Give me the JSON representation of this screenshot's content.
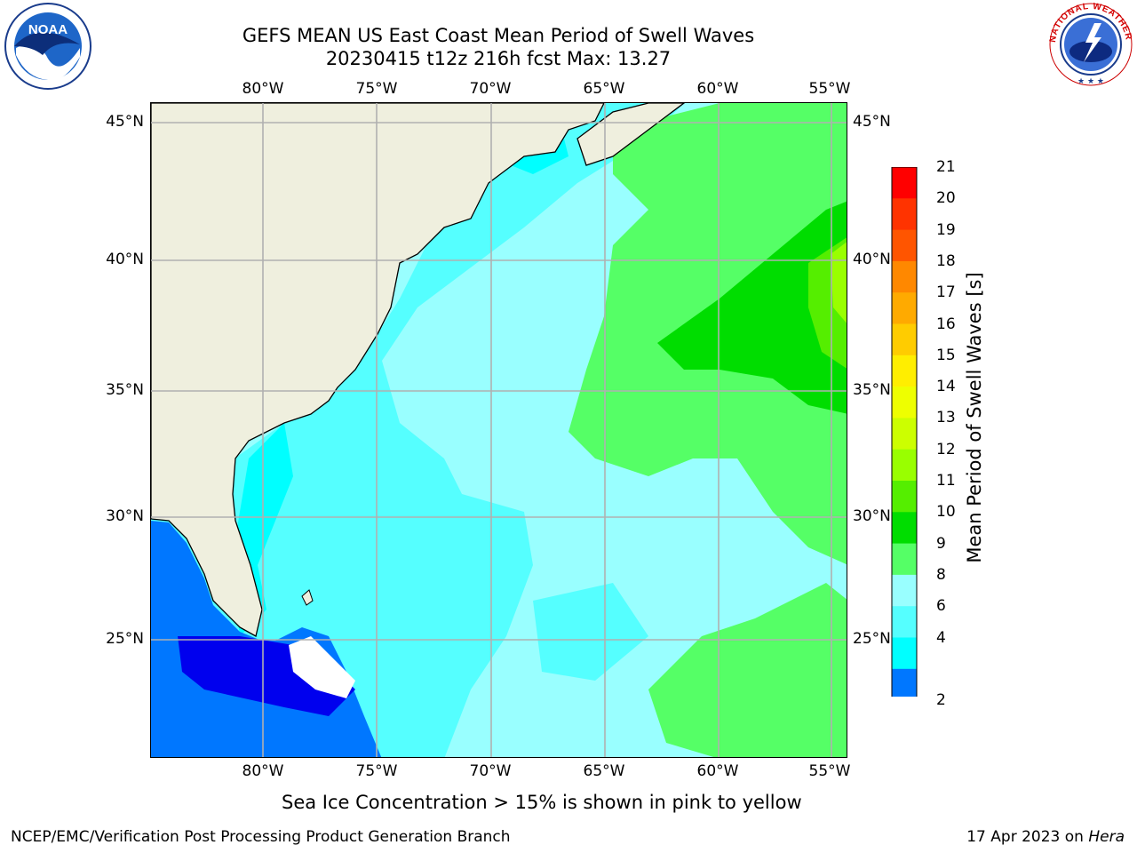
{
  "title": {
    "line1": "GEFS MEAN US East Coast Mean Period of Swell Waves",
    "line2": "20230415 t12z 216h fcst   Max: 13.27"
  },
  "map": {
    "lon_labels": [
      "80°W",
      "75°W",
      "70°W",
      "65°W",
      "60°W",
      "55°W"
    ],
    "lat_labels": [
      "45°N",
      "40°N",
      "35°N",
      "30°N",
      "25°N"
    ],
    "lon_range": [
      -85,
      -55
    ],
    "lat_range": [
      20.5,
      45.8
    ],
    "land_color": "#efefde",
    "grid_color": "#b0b0b0"
  },
  "colorbar": {
    "label": "Mean Period of Swell Waves [s]",
    "ticks": [
      "21",
      "20",
      "19",
      "18",
      "17",
      "16",
      "15",
      "14",
      "13",
      "12",
      "11",
      "10",
      "9",
      "8",
      "6",
      "4",
      "2"
    ],
    "colors": [
      "#ff0000",
      "#ff3300",
      "#ff5500",
      "#ff8800",
      "#ffaa00",
      "#ffcc00",
      "#ffee00",
      "#eeff00",
      "#ccff00",
      "#99ff00",
      "#55ee00",
      "#00dd00",
      "#55ff66",
      "#99ffff",
      "#55ffff",
      "#00ffff",
      "#0077ff"
    ],
    "under_color": "#0000ee"
  },
  "footnote": "Sea Ice Concentration > 15% is shown in pink to yellow",
  "footer": {
    "left": "NCEP/EMC/Verification Post Processing Product Generation Branch",
    "date": "17 Apr 2023 on ",
    "machine": "Hera"
  },
  "logos": {
    "noaa_text": "NOAA",
    "nws_ring_text": "NATIONAL WEATHER SERVICE"
  }
}
